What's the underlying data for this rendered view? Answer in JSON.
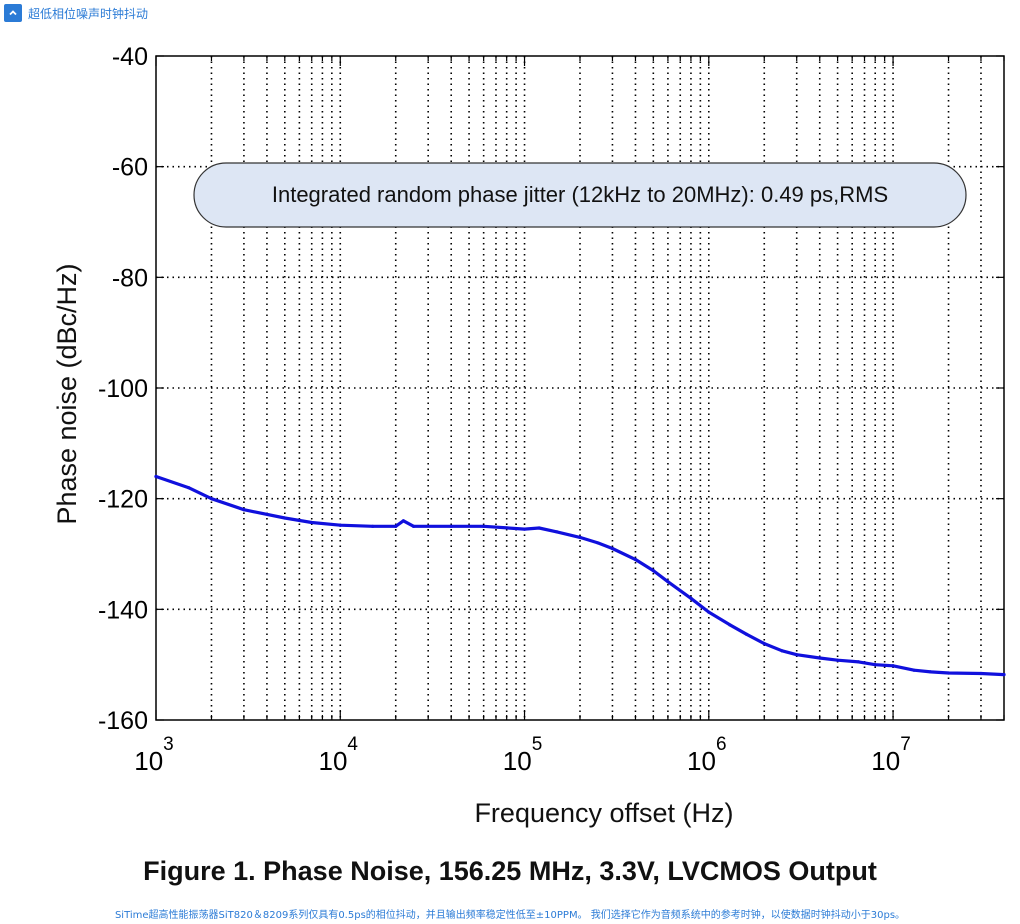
{
  "header": {
    "title": "超低相位噪声时钟抖动",
    "collapse_icon": "chevron-up-icon",
    "accent_color": "#2b7bd6"
  },
  "chart_data": {
    "type": "line",
    "title": "",
    "xlabel": "Frequency offset (Hz)",
    "ylabel": "Phase noise (dBc/Hz)",
    "x_scale": "log",
    "xlim": [
      1000,
      40000000
    ],
    "ylim": [
      -160,
      -40
    ],
    "y_ticks": [
      -40,
      -60,
      -80,
      -100,
      -120,
      -140,
      -160
    ],
    "x_ticks": [
      {
        "value": 1000,
        "base": "10",
        "exp": "3"
      },
      {
        "value": 10000,
        "base": "10",
        "exp": "4"
      },
      {
        "value": 100000,
        "base": "10",
        "exp": "5"
      },
      {
        "value": 1000000,
        "base": "10",
        "exp": "6"
      },
      {
        "value": 10000000,
        "base": "10",
        "exp": "7"
      }
    ],
    "grid": true,
    "annotation": "Integrated random phase jitter (12kHz to 20MHz): 0.49 ps,RMS",
    "series": [
      {
        "color": "#1010dd",
        "x": [
          1000,
          1500,
          2000,
          3000,
          5000,
          7000,
          10000,
          15000,
          20000,
          22000,
          25000,
          40000,
          60000,
          100000,
          120000,
          150000,
          200000,
          250000,
          300000,
          400000,
          500000,
          600000,
          800000,
          1000000,
          1300000,
          1600000,
          2000000,
          2500000,
          3000000,
          4000000,
          5000000,
          6500000,
          8000000,
          10000000,
          13000000,
          16000000,
          20000000,
          30000000,
          40000000
        ],
        "y": [
          -116,
          -118,
          -120,
          -122,
          -123.5,
          -124.3,
          -124.8,
          -125,
          -125,
          -124,
          -125,
          -125,
          -125,
          -125.5,
          -125.3,
          -126,
          -127,
          -128,
          -129,
          -131,
          -133,
          -135,
          -138,
          -140.5,
          -142.8,
          -144.5,
          -146.2,
          -147.5,
          -148.2,
          -148.8,
          -149.2,
          -149.5,
          -150,
          -150.2,
          -151,
          -151.3,
          -151.5,
          -151.6,
          -151.8
        ]
      }
    ]
  },
  "caption": "Figure 1. Phase Noise, 156.25 MHz, 3.3V, LVCMOS Output",
  "footer_note": "SiTime超高性能振荡器SiT820＆8209系列仅具有0.5ps的相位抖动，并且输出频率稳定性低至±10PPM。 我们选择它作为音频系统中的参考时钟，以使数据时钟抖动小于30ps。"
}
